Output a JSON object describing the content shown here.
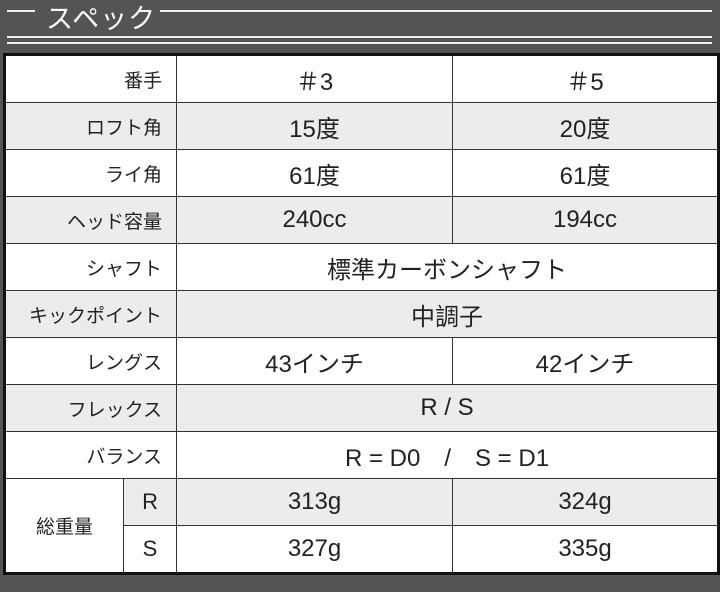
{
  "header": {
    "title": "スペック"
  },
  "table": {
    "columns": [
      "番手",
      "＃3",
      "＃5"
    ],
    "rows": [
      {
        "label": "ロフト角",
        "values": [
          "15度",
          "20度"
        ]
      },
      {
        "label": "ライ角",
        "values": [
          "61度",
          "61度"
        ]
      },
      {
        "label": "ヘッド容量",
        "values": [
          "240cc",
          "194cc"
        ]
      },
      {
        "label": "シャフト",
        "merged": "標準カーボンシャフト"
      },
      {
        "label": "キックポイント",
        "merged": "中調子"
      },
      {
        "label": "レングス",
        "values": [
          "43インチ",
          "42インチ"
        ]
      },
      {
        "label": "フレックス",
        "merged": "R / S"
      },
      {
        "label": "バランス",
        "merged": "R = D0　/　S = D1"
      }
    ],
    "weight": {
      "label": "総重量",
      "rows": [
        {
          "flex": "R",
          "values": [
            "313g",
            "324g"
          ]
        },
        {
          "flex": "S",
          "values": [
            "327g",
            "335g"
          ]
        }
      ]
    }
  }
}
